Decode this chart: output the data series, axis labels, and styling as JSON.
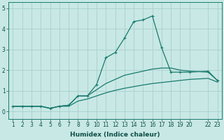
{
  "xlabel": "Humidex (Indice chaleur)",
  "background_color": "#c8e8e5",
  "plot_color": "#1a7a6e",
  "grid_color": "#a8d0cc",
  "x_values": [
    1,
    2,
    3,
    4,
    5,
    6,
    7,
    8,
    9,
    10,
    11,
    12,
    13,
    14,
    15,
    16,
    17,
    18,
    19,
    20,
    22,
    23
  ],
  "line_peak_y": [
    0.25,
    0.25,
    0.25,
    0.25,
    0.15,
    0.25,
    0.3,
    0.75,
    0.75,
    1.3,
    2.6,
    2.85,
    3.55,
    4.35,
    4.43,
    4.62,
    3.08,
    1.9,
    1.9,
    1.9,
    1.95,
    1.5
  ],
  "line_mid_y": [
    0.25,
    0.25,
    0.25,
    0.25,
    0.15,
    0.25,
    0.3,
    0.75,
    0.75,
    1.05,
    1.35,
    1.55,
    1.75,
    1.85,
    1.95,
    2.05,
    2.1,
    2.1,
    2.0,
    1.95,
    1.9,
    1.5
  ],
  "line_low_y": [
    0.25,
    0.25,
    0.25,
    0.25,
    0.15,
    0.25,
    0.25,
    0.5,
    0.6,
    0.75,
    0.9,
    1.02,
    1.12,
    1.2,
    1.28,
    1.35,
    1.4,
    1.45,
    1.5,
    1.55,
    1.6,
    1.42
  ],
  "ylim": [
    -0.35,
    5.3
  ],
  "xlim": [
    0.5,
    23.5
  ],
  "yticks": [
    0,
    1,
    2,
    3,
    4,
    5
  ],
  "xticks": [
    1,
    2,
    3,
    4,
    5,
    6,
    7,
    8,
    9,
    10,
    11,
    12,
    13,
    14,
    15,
    16,
    17,
    18,
    19,
    20,
    22,
    23
  ],
  "marker_size": 2.5,
  "line_width": 0.9,
  "xlabel_fontsize": 6.5,
  "tick_fontsize": 5.5
}
